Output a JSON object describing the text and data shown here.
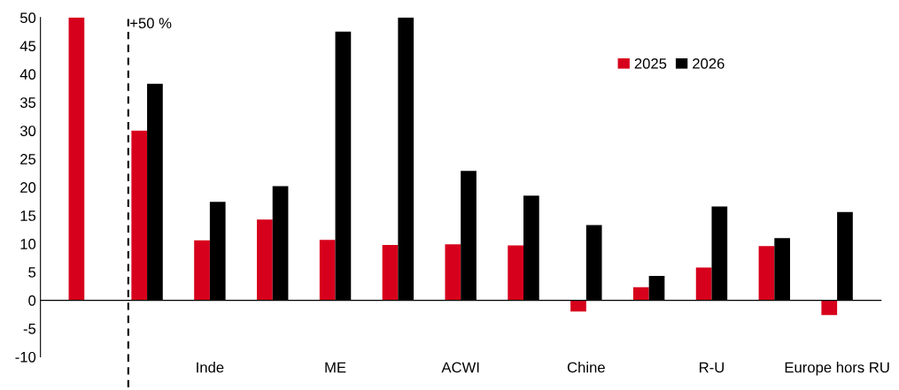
{
  "chart_data": {
    "type": "bar",
    "categories": [
      null,
      null,
      "Inde",
      null,
      "ME",
      null,
      "ACWI",
      null,
      "Chine",
      null,
      "R-U",
      null,
      "Europe hors RU"
    ],
    "series": [
      {
        "name": "2025",
        "color": "#d7001c",
        "values": [
          50,
          30,
          10.6,
          14.3,
          10.7,
          9.8,
          9.9,
          9.7,
          -2,
          2.3,
          5.8,
          9.6,
          -2.6
        ]
      },
      {
        "name": "2026",
        "color": "#000000",
        "values": [
          null,
          38.3,
          17.4,
          20.2,
          47.5,
          50,
          22.9,
          18.5,
          13.3,
          4.3,
          16.6,
          11,
          15.6
        ]
      }
    ],
    "annotations": [
      "+50 %"
    ],
    "ylim": [
      -10,
      50
    ],
    "yticks": [
      -10,
      -5,
      0,
      5,
      10,
      15,
      20,
      25,
      30,
      35,
      40,
      45,
      50
    ],
    "legend": "top right"
  }
}
